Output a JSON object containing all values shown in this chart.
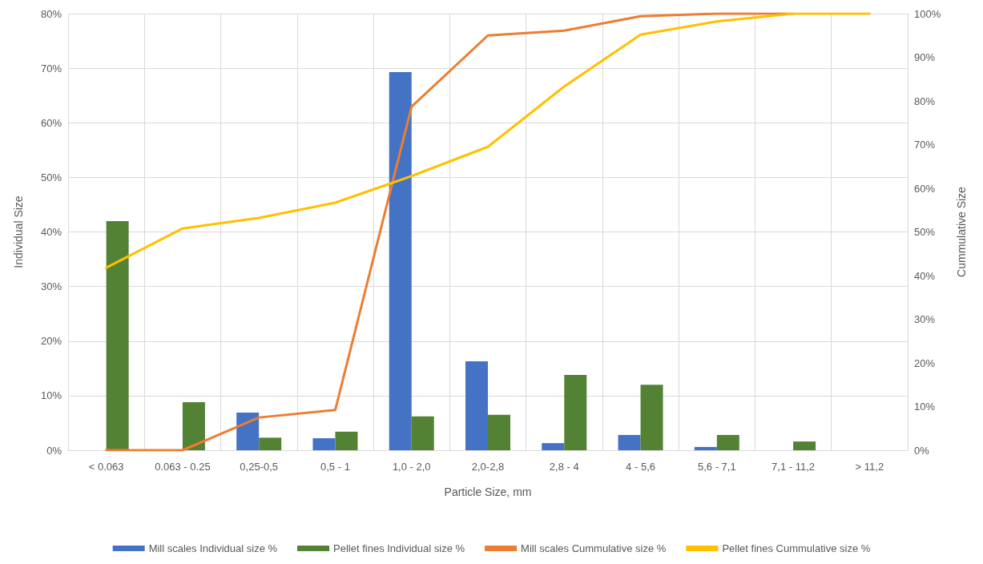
{
  "chart_data": {
    "type": "bar",
    "xlabel": "Particle Size, mm",
    "ylabel": "Individual Size",
    "y2label": "Cummulative Size",
    "categories": [
      "< 0.063",
      "0.063 - 0.25",
      "0,25-0,5",
      "0,5 - 1",
      "1,0 - 2,0",
      "2,0-2,8",
      "2,8 - 4",
      "4 - 5,6",
      "5,6 - 7,1",
      "7,1 - 11,2",
      "> 11,2"
    ],
    "series": [
      {
        "name": "Mill scales Individual size %",
        "color": "#4472c4",
        "values": [
          0,
          0,
          6.9,
          2.2,
          69.3,
          16.3,
          1.3,
          2.8,
          0.6,
          0,
          0
        ]
      },
      {
        "name": "Pellet fines Individual size %",
        "color": "#548235",
        "values": [
          42.0,
          8.8,
          2.3,
          3.4,
          6.2,
          6.5,
          13.8,
          12.0,
          2.8,
          1.6,
          0
        ]
      },
      {
        "name": "Mill scales Cummulative size %",
        "type": "line",
        "axis": "y2",
        "color": "#ed7d31",
        "values": [
          0,
          0,
          7.5,
          9.2,
          78.7,
          95.0,
          96.1,
          99.4,
          100,
          100,
          null
        ]
      },
      {
        "name": "Pellet fines Cummulative size %",
        "type": "line",
        "axis": "y2",
        "color": "#ffc000",
        "values": [
          41.8,
          50.8,
          53.2,
          56.7,
          62.8,
          69.5,
          83.3,
          95.2,
          98.2,
          100,
          100
        ]
      }
    ],
    "ylim": [
      0,
      80
    ],
    "yticks": [
      {
        "value": 0,
        "label": "0%"
      },
      {
        "value": 10,
        "label": "10%"
      },
      {
        "value": 20,
        "label": "20%"
      },
      {
        "value": 30,
        "label": "30%"
      },
      {
        "value": 40,
        "label": "40%"
      },
      {
        "value": 50,
        "label": "50%"
      },
      {
        "value": 60,
        "label": "60%"
      },
      {
        "value": 70,
        "label": "70%"
      },
      {
        "value": 80,
        "label": "80%"
      }
    ],
    "y2lim": [
      0,
      100
    ],
    "y2ticks": [
      {
        "value": 0,
        "label": "0%"
      },
      {
        "value": 10,
        "label": "10%"
      },
      {
        "value": 20,
        "label": "20%"
      },
      {
        "value": 30,
        "label": "30%"
      },
      {
        "value": 40,
        "label": "40%"
      },
      {
        "value": 50,
        "label": "50%"
      },
      {
        "value": 60,
        "label": "60%"
      },
      {
        "value": 70,
        "label": "70%"
      },
      {
        "value": 80,
        "label": "80%"
      },
      {
        "value": 90,
        "label": "90%"
      },
      {
        "value": 100,
        "label": "100%"
      }
    ],
    "grid": true,
    "legend": "bottom",
    "marker": "none",
    "line_style": "solid"
  }
}
